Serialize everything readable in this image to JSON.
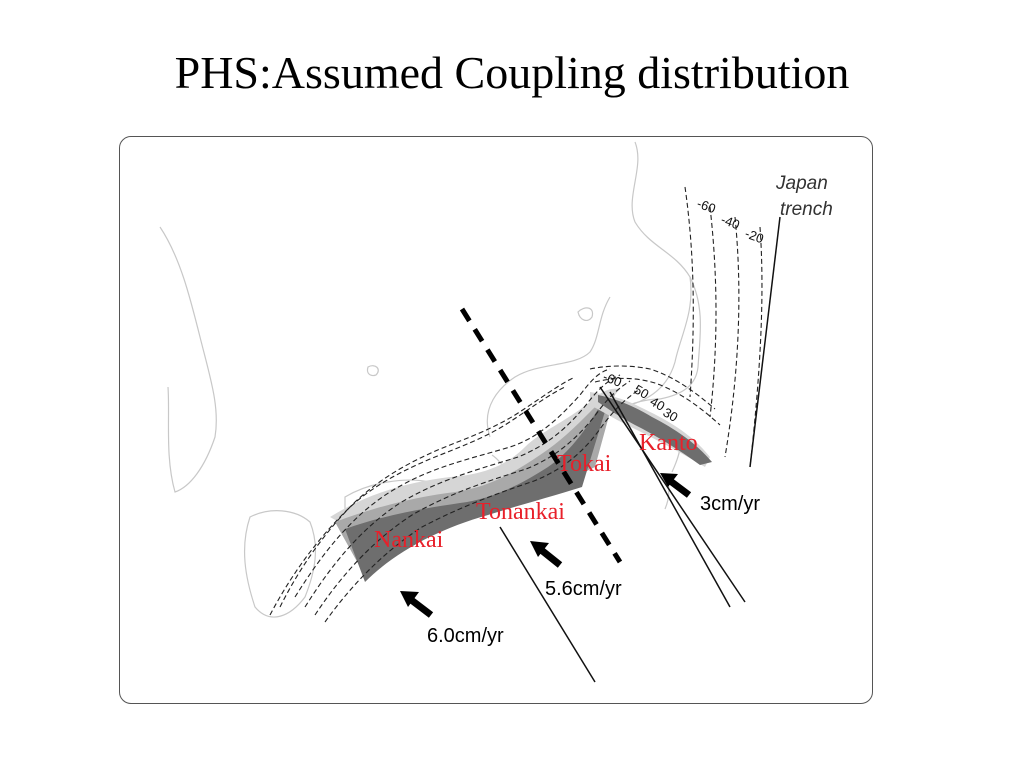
{
  "title": "PHS:Assumed Coupling distribution",
  "map": {
    "trench_label_line1": "Japan",
    "trench_label_line2": "trench",
    "trench_contours": [
      "-60",
      "-40",
      "-20"
    ],
    "phs_contours": [
      "-60",
      "50",
      "40",
      "30"
    ],
    "regions": {
      "kanto": "Kanto",
      "tokai": "Tokai",
      "tonankai": "Tonankai",
      "nankai": "Nankai"
    },
    "rates": {
      "kanto_rate": "3cm/yr",
      "tonankai_rate": "5.6cm/yr",
      "nankai_rate": "6.0cm/yr"
    },
    "colors": {
      "region_label": "#e8202a",
      "zone_dark": "#6e6e6e",
      "zone_mid": "#a9a9a9",
      "zone_light": "#d6d6d6",
      "coastline": "#c8c8c8"
    }
  }
}
